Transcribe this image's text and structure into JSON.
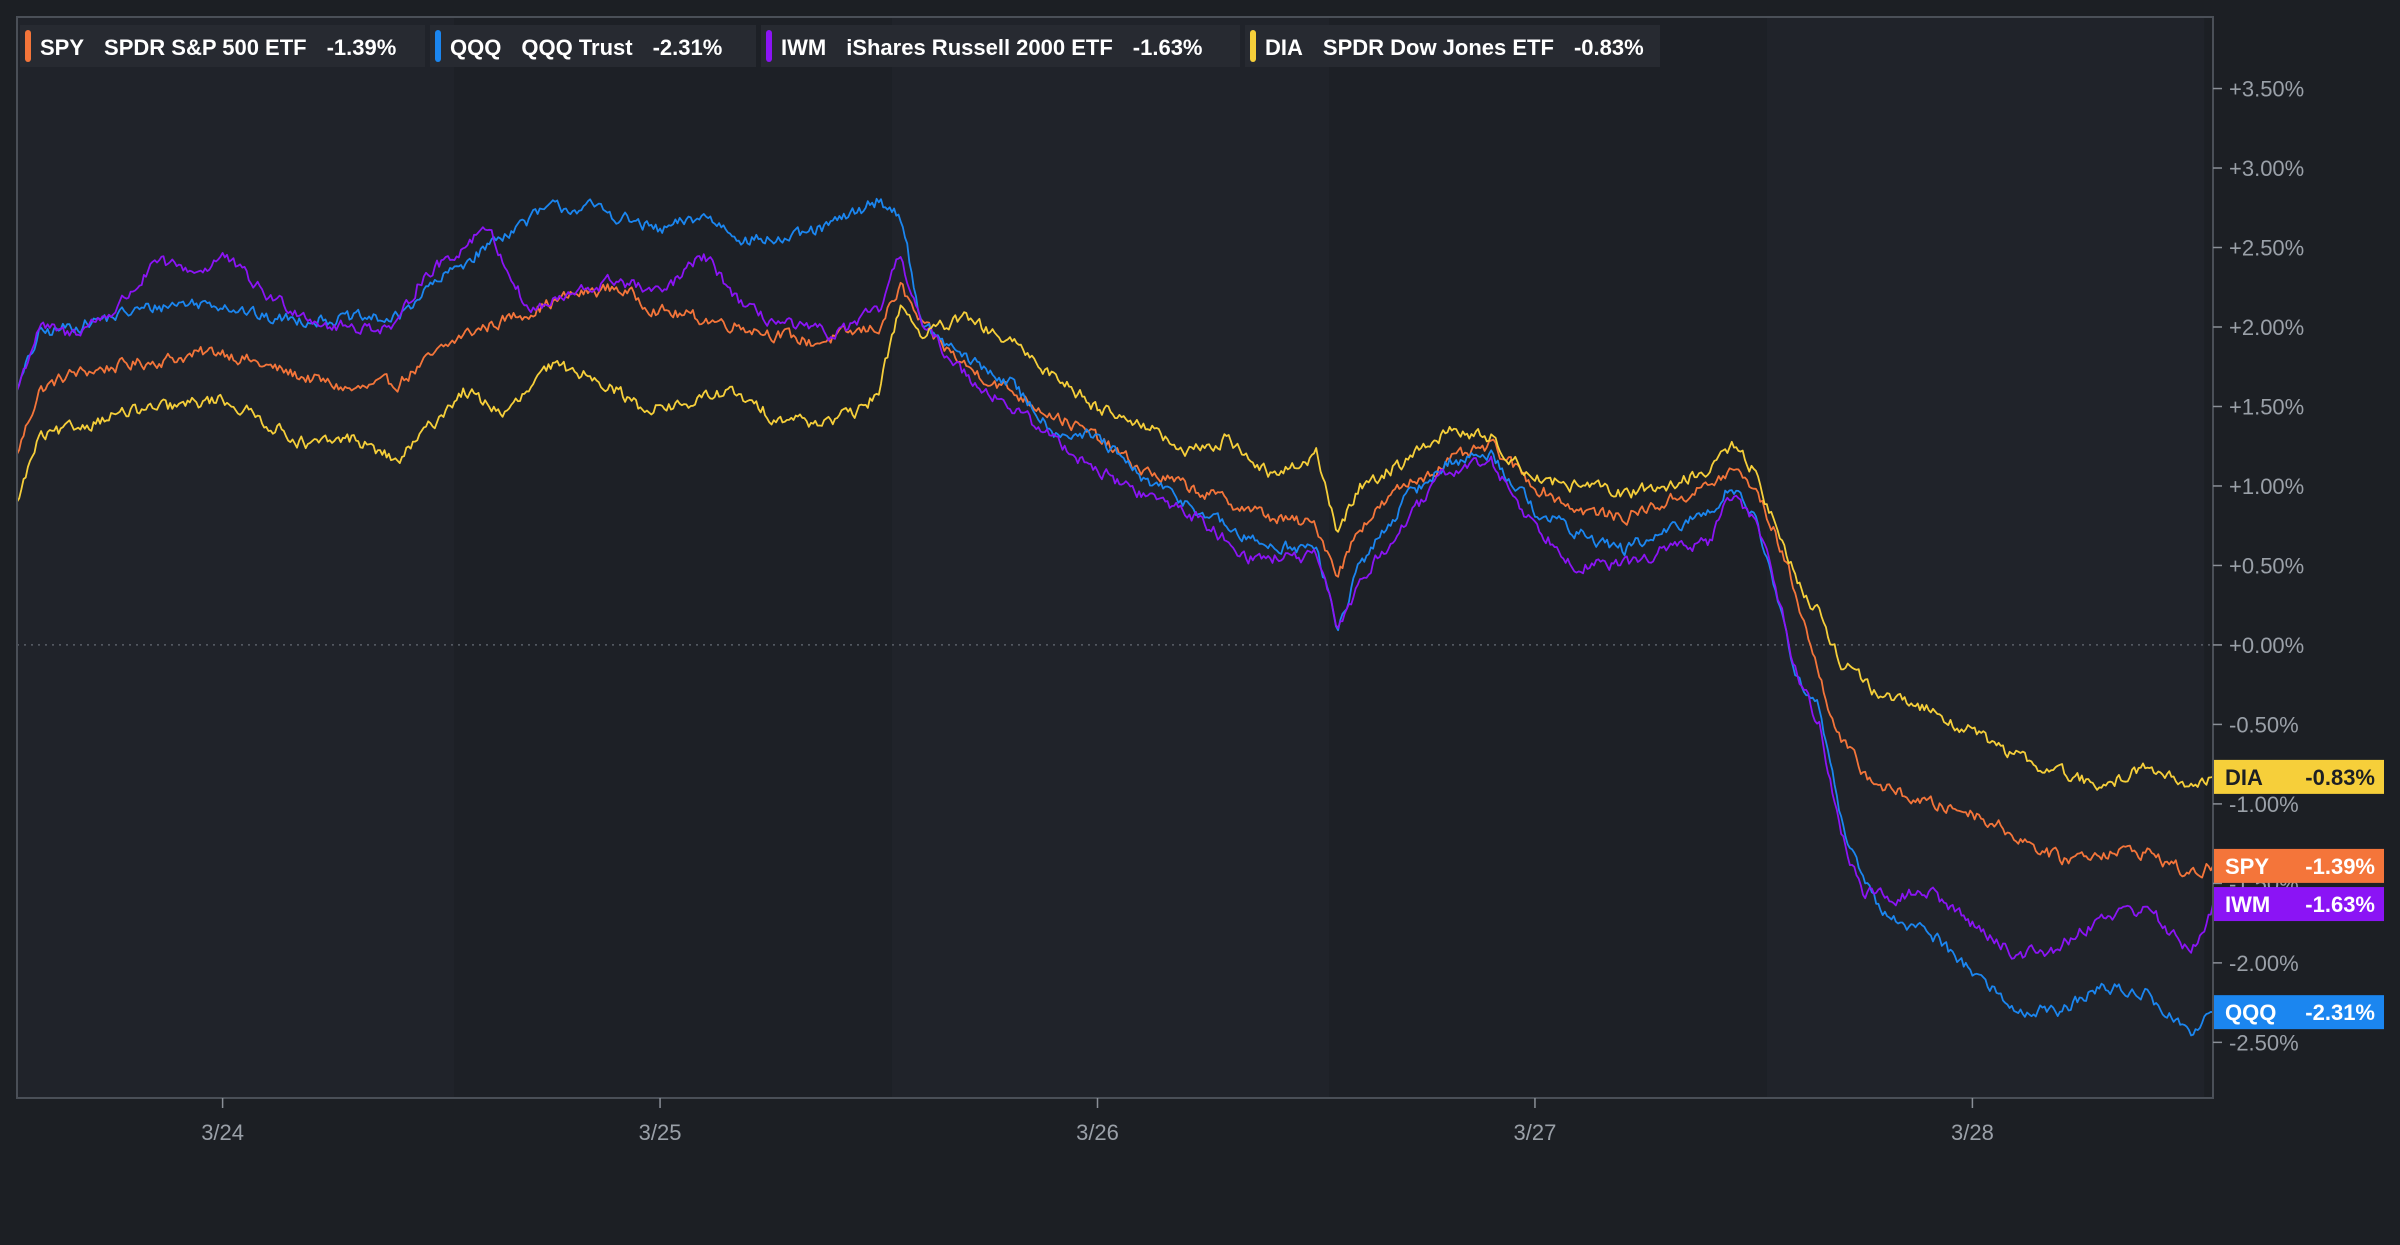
{
  "legend": [
    {
      "ticker": "SPY",
      "name": "SPDR S&P 500 ETF",
      "change": "-1.39%",
      "color": "#f4753a"
    },
    {
      "ticker": "QQQ",
      "name": "QQQ Trust",
      "change": "-2.31%",
      "color": "#1b86f0"
    },
    {
      "ticker": "IWM",
      "name": "iShares Russell 2000 ETF",
      "change": "-1.63%",
      "color": "#8b14f5"
    },
    {
      "ticker": "DIA",
      "name": "SPDR Dow Jones ETF",
      "change": "-0.83%",
      "color": "#f6cf3a"
    }
  ],
  "chart_data": {
    "type": "line",
    "x_tick_labels": [
      "3/24",
      "3/25",
      "3/26",
      "3/27",
      "3/28"
    ],
    "xlim": [
      -0.47,
      4.55
    ],
    "ylim": [
      -2.85,
      3.95
    ],
    "y_ticks": [
      3.5,
      3.0,
      2.5,
      2.0,
      1.5,
      1.0,
      0.5,
      0.0,
      -0.5,
      -1.0,
      -1.5,
      -2.0,
      -2.5
    ],
    "y_tick_labels": [
      "+3.50%",
      "+3.00%",
      "+2.50%",
      "+2.00%",
      "+1.50%",
      "+1.00%",
      "+0.50%",
      "+0.00%",
      "-0.50%",
      "-1.00%",
      "-1.50%",
      "-2.00%",
      "-2.50%"
    ],
    "baseline": 0.0,
    "grid": false,
    "legend_position": "top-left",
    "series": [
      {
        "name": "SPY",
        "color": "#f4753a",
        "end_label": "-1.39%",
        "points": [
          [
            -0.47,
            1.2
          ],
          [
            -0.42,
            1.6
          ],
          [
            -0.35,
            1.7
          ],
          [
            -0.25,
            1.75
          ],
          [
            -0.12,
            1.8
          ],
          [
            0.0,
            1.85
          ],
          [
            0.1,
            1.75
          ],
          [
            0.3,
            1.6
          ],
          [
            0.4,
            1.65
          ],
          [
            0.5,
            1.85
          ],
          [
            0.55,
            1.95
          ],
          [
            0.7,
            2.1
          ],
          [
            0.8,
            2.2
          ],
          [
            0.9,
            2.25
          ],
          [
            1.0,
            2.1
          ],
          [
            1.2,
            2.0
          ],
          [
            1.35,
            1.9
          ],
          [
            1.5,
            2.0
          ],
          [
            1.55,
            2.25
          ],
          [
            1.6,
            2.0
          ],
          [
            1.7,
            1.75
          ],
          [
            1.8,
            1.6
          ],
          [
            1.9,
            1.45
          ],
          [
            2.0,
            1.3
          ],
          [
            2.1,
            1.1
          ],
          [
            2.2,
            1.0
          ],
          [
            2.4,
            0.8
          ],
          [
            2.5,
            0.75
          ],
          [
            2.55,
            0.45
          ],
          [
            2.6,
            0.75
          ],
          [
            2.7,
            1.0
          ],
          [
            2.8,
            1.15
          ],
          [
            2.9,
            1.25
          ],
          [
            3.0,
            1.0
          ],
          [
            3.1,
            0.85
          ],
          [
            3.2,
            0.8
          ],
          [
            3.3,
            0.9
          ],
          [
            3.4,
            1.0
          ],
          [
            3.45,
            1.1
          ],
          [
            3.5,
            1.0
          ],
          [
            3.55,
            0.7
          ],
          [
            3.6,
            0.3
          ],
          [
            3.65,
            -0.2
          ],
          [
            3.7,
            -0.6
          ],
          [
            3.75,
            -0.8
          ],
          [
            3.8,
            -0.9
          ],
          [
            3.9,
            -1.0
          ],
          [
            4.0,
            -1.05
          ],
          [
            4.1,
            -1.2
          ],
          [
            4.2,
            -1.35
          ],
          [
            4.3,
            -1.3
          ],
          [
            4.4,
            -1.3
          ],
          [
            4.5,
            -1.45
          ],
          [
            4.55,
            -1.39
          ]
        ]
      },
      {
        "name": "QQQ",
        "color": "#1b86f0",
        "end_label": "-2.31%",
        "points": [
          [
            -0.47,
            1.6
          ],
          [
            -0.42,
            1.95
          ],
          [
            -0.35,
            2.0
          ],
          [
            -0.2,
            2.1
          ],
          [
            -0.1,
            2.15
          ],
          [
            0.0,
            2.15
          ],
          [
            0.1,
            2.05
          ],
          [
            0.3,
            2.05
          ],
          [
            0.4,
            2.05
          ],
          [
            0.45,
            2.2
          ],
          [
            0.55,
            2.4
          ],
          [
            0.65,
            2.6
          ],
          [
            0.75,
            2.75
          ],
          [
            0.85,
            2.75
          ],
          [
            1.0,
            2.6
          ],
          [
            1.1,
            2.7
          ],
          [
            1.2,
            2.55
          ],
          [
            1.3,
            2.55
          ],
          [
            1.4,
            2.65
          ],
          [
            1.5,
            2.8
          ],
          [
            1.55,
            2.7
          ],
          [
            1.6,
            2.0
          ],
          [
            1.7,
            1.8
          ],
          [
            1.8,
            1.65
          ],
          [
            1.9,
            1.35
          ],
          [
            2.0,
            1.3
          ],
          [
            2.1,
            1.05
          ],
          [
            2.2,
            0.9
          ],
          [
            2.35,
            0.65
          ],
          [
            2.5,
            0.6
          ],
          [
            2.55,
            0.1
          ],
          [
            2.6,
            0.5
          ],
          [
            2.7,
            0.9
          ],
          [
            2.8,
            1.15
          ],
          [
            2.9,
            1.2
          ],
          [
            3.0,
            0.85
          ],
          [
            3.1,
            0.7
          ],
          [
            3.2,
            0.6
          ],
          [
            3.3,
            0.7
          ],
          [
            3.4,
            0.85
          ],
          [
            3.45,
            1.0
          ],
          [
            3.5,
            0.85
          ],
          [
            3.55,
            0.3
          ],
          [
            3.6,
            -0.2
          ],
          [
            3.65,
            -0.4
          ],
          [
            3.7,
            -1.1
          ],
          [
            3.75,
            -1.5
          ],
          [
            3.8,
            -1.7
          ],
          [
            3.9,
            -1.8
          ],
          [
            4.0,
            -2.05
          ],
          [
            4.1,
            -2.3
          ],
          [
            4.2,
            -2.3
          ],
          [
            4.3,
            -2.15
          ],
          [
            4.4,
            -2.2
          ],
          [
            4.5,
            -2.45
          ],
          [
            4.55,
            -2.31
          ]
        ]
      },
      {
        "name": "IWM",
        "color": "#8b14f5",
        "end_label": "-1.63%",
        "points": [
          [
            -0.47,
            1.6
          ],
          [
            -0.42,
            2.0
          ],
          [
            -0.35,
            1.95
          ],
          [
            -0.25,
            2.1
          ],
          [
            -0.15,
            2.4
          ],
          [
            -0.05,
            2.35
          ],
          [
            0.0,
            2.45
          ],
          [
            0.1,
            2.2
          ],
          [
            0.25,
            2.0
          ],
          [
            0.35,
            2.0
          ],
          [
            0.4,
            2.0
          ],
          [
            0.45,
            2.3
          ],
          [
            0.55,
            2.5
          ],
          [
            0.6,
            2.65
          ],
          [
            0.7,
            2.1
          ],
          [
            0.8,
            2.2
          ],
          [
            0.9,
            2.3
          ],
          [
            1.0,
            2.2
          ],
          [
            1.1,
            2.45
          ],
          [
            1.2,
            2.1
          ],
          [
            1.3,
            2.0
          ],
          [
            1.4,
            1.95
          ],
          [
            1.5,
            2.1
          ],
          [
            1.55,
            2.45
          ],
          [
            1.6,
            2.0
          ],
          [
            1.7,
            1.7
          ],
          [
            1.8,
            1.5
          ],
          [
            1.9,
            1.3
          ],
          [
            2.0,
            1.1
          ],
          [
            2.1,
            0.95
          ],
          [
            2.2,
            0.85
          ],
          [
            2.35,
            0.55
          ],
          [
            2.5,
            0.55
          ],
          [
            2.55,
            0.1
          ],
          [
            2.6,
            0.4
          ],
          [
            2.7,
            0.75
          ],
          [
            2.8,
            1.1
          ],
          [
            2.9,
            1.15
          ],
          [
            3.0,
            0.75
          ],
          [
            3.1,
            0.5
          ],
          [
            3.2,
            0.5
          ],
          [
            3.3,
            0.6
          ],
          [
            3.4,
            0.65
          ],
          [
            3.45,
            0.95
          ],
          [
            3.5,
            0.8
          ],
          [
            3.55,
            0.4
          ],
          [
            3.6,
            -0.2
          ],
          [
            3.65,
            -0.5
          ],
          [
            3.7,
            -1.2
          ],
          [
            3.75,
            -1.55
          ],
          [
            3.8,
            -1.6
          ],
          [
            3.9,
            -1.55
          ],
          [
            4.0,
            -1.75
          ],
          [
            4.1,
            -1.95
          ],
          [
            4.2,
            -1.9
          ],
          [
            4.3,
            -1.7
          ],
          [
            4.4,
            -1.65
          ],
          [
            4.5,
            -1.95
          ],
          [
            4.55,
            -1.63
          ]
        ]
      },
      {
        "name": "DIA",
        "color": "#f6cf3a",
        "end_label": "-0.83%",
        "points": [
          [
            -0.47,
            0.9
          ],
          [
            -0.42,
            1.3
          ],
          [
            -0.35,
            1.35
          ],
          [
            -0.25,
            1.45
          ],
          [
            -0.1,
            1.5
          ],
          [
            0.0,
            1.55
          ],
          [
            0.1,
            1.4
          ],
          [
            0.2,
            1.25
          ],
          [
            0.3,
            1.3
          ],
          [
            0.4,
            1.15
          ],
          [
            0.5,
            1.45
          ],
          [
            0.55,
            1.6
          ],
          [
            0.65,
            1.45
          ],
          [
            0.75,
            1.75
          ],
          [
            0.85,
            1.7
          ],
          [
            0.95,
            1.5
          ],
          [
            1.05,
            1.5
          ],
          [
            1.15,
            1.6
          ],
          [
            1.25,
            1.45
          ],
          [
            1.35,
            1.4
          ],
          [
            1.45,
            1.45
          ],
          [
            1.5,
            1.6
          ],
          [
            1.55,
            2.15
          ],
          [
            1.6,
            1.95
          ],
          [
            1.7,
            2.05
          ],
          [
            1.8,
            1.9
          ],
          [
            1.9,
            1.7
          ],
          [
            2.0,
            1.5
          ],
          [
            2.1,
            1.4
          ],
          [
            2.2,
            1.2
          ],
          [
            2.3,
            1.3
          ],
          [
            2.4,
            1.05
          ],
          [
            2.5,
            1.2
          ],
          [
            2.55,
            0.7
          ],
          [
            2.6,
            1.0
          ],
          [
            2.7,
            1.15
          ],
          [
            2.8,
            1.35
          ],
          [
            2.9,
            1.3
          ],
          [
            3.0,
            1.05
          ],
          [
            3.1,
            1.0
          ],
          [
            3.2,
            0.95
          ],
          [
            3.3,
            1.0
          ],
          [
            3.4,
            1.1
          ],
          [
            3.45,
            1.25
          ],
          [
            3.5,
            1.1
          ],
          [
            3.55,
            0.75
          ],
          [
            3.6,
            0.4
          ],
          [
            3.65,
            0.2
          ],
          [
            3.7,
            -0.1
          ],
          [
            3.8,
            -0.35
          ],
          [
            3.9,
            -0.4
          ],
          [
            4.0,
            -0.55
          ],
          [
            4.1,
            -0.7
          ],
          [
            4.2,
            -0.8
          ],
          [
            4.3,
            -0.9
          ],
          [
            4.4,
            -0.75
          ],
          [
            4.5,
            -0.9
          ],
          [
            4.55,
            -0.83
          ]
        ]
      }
    ]
  }
}
